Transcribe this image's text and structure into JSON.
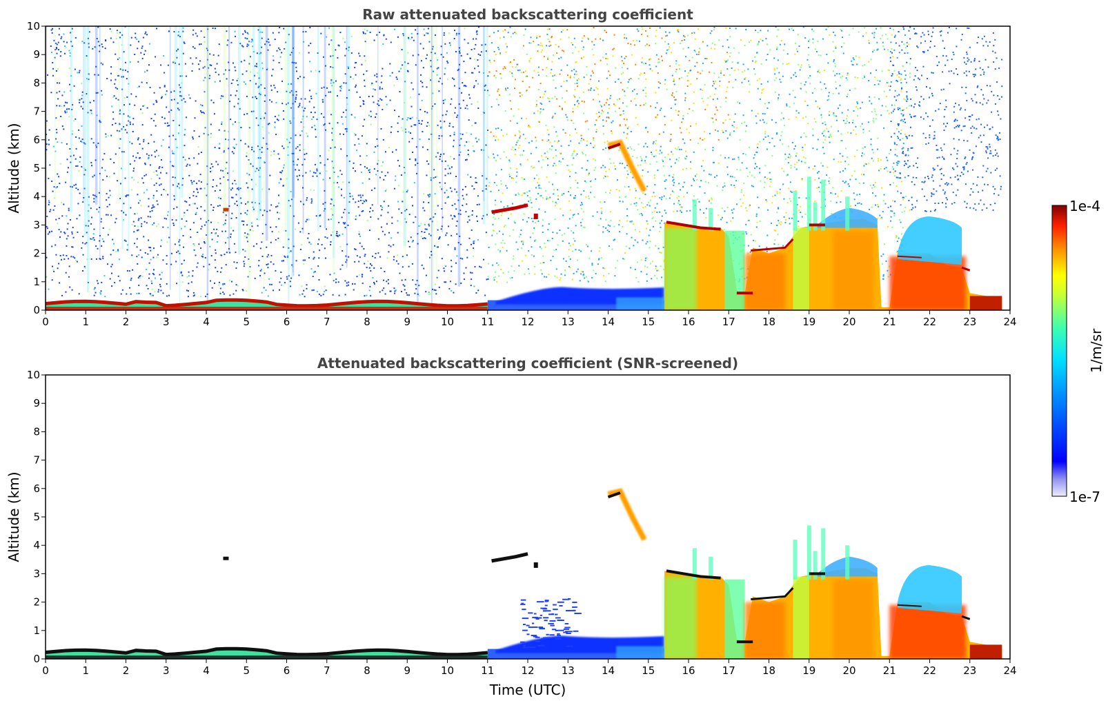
{
  "chart_data": [
    {
      "type": "heatmap",
      "title": "Raw attenuated backscattering coefficient",
      "xlabel": "",
      "ylabel": "Altitude (km)",
      "xlim": [
        0,
        24
      ],
      "ylim": [
        0,
        10
      ],
      "x_ticks": [
        0,
        1,
        2,
        3,
        4,
        5,
        6,
        7,
        8,
        9,
        10,
        11,
        12,
        13,
        14,
        15,
        16,
        17,
        18,
        19,
        20,
        21,
        22,
        23,
        24
      ],
      "y_ticks": [
        0,
        1,
        2,
        3,
        4,
        5,
        6,
        7,
        8,
        9,
        10
      ],
      "colormap": "jet",
      "log_scale": true,
      "features": [
        {
          "name": "near-surface layer",
          "x": [
            0,
            11
          ],
          "y": [
            0,
            0.4
          ],
          "level": "high"
        },
        {
          "name": "noise background",
          "x": [
            0,
            11
          ],
          "y": [
            0.4,
            10
          ],
          "level": "low"
        },
        {
          "name": "elevated layer",
          "x": [
            11,
            12.2
          ],
          "y": [
            3.3,
            3.7
          ],
          "level": "high"
        },
        {
          "name": "descending layer",
          "x": [
            14,
            15
          ],
          "y": [
            4.3,
            5.9
          ],
          "level": "high"
        },
        {
          "name": "boundary layer",
          "x": [
            11,
            15.4
          ],
          "y": [
            0,
            0.8
          ],
          "level": "low"
        },
        {
          "name": "cloud deck",
          "x": [
            15.4,
            23.8
          ],
          "y": [
            0,
            3.5
          ],
          "level": "high"
        },
        {
          "name": "scattered plumes",
          "x": [
            16,
            20
          ],
          "y": [
            3,
            4.8
          ],
          "level": "medium"
        }
      ]
    },
    {
      "type": "heatmap",
      "title": "Attenuated backscattering coefficient (SNR-screened)",
      "xlabel": "Time (UTC)",
      "ylabel": "Altitude (km)",
      "xlim": [
        0,
        24
      ],
      "ylim": [
        0,
        10
      ],
      "x_ticks": [
        0,
        1,
        2,
        3,
        4,
        5,
        6,
        7,
        8,
        9,
        10,
        11,
        12,
        13,
        14,
        15,
        16,
        17,
        18,
        19,
        20,
        21,
        22,
        23,
        24
      ],
      "y_ticks": [
        0,
        1,
        2,
        3,
        4,
        5,
        6,
        7,
        8,
        9,
        10
      ],
      "colormap": "jet",
      "log_scale": true,
      "features": [
        {
          "name": "near-surface layer",
          "x": [
            0,
            11
          ],
          "y": [
            0,
            0.4
          ],
          "level": "high"
        },
        {
          "name": "elevated layer",
          "x": [
            11,
            12.2
          ],
          "y": [
            3.3,
            3.7
          ],
          "level": "high"
        },
        {
          "name": "descending layer",
          "x": [
            14,
            15
          ],
          "y": [
            4.3,
            5.9
          ],
          "level": "high"
        },
        {
          "name": "boundary layer",
          "x": [
            11,
            15.4
          ],
          "y": [
            0,
            0.8
          ],
          "level": "low"
        },
        {
          "name": "cloud deck",
          "x": [
            15.4,
            23.8
          ],
          "y": [
            0,
            3.5
          ],
          "level": "high"
        }
      ]
    }
  ],
  "colorbar": {
    "label": "1/m/sr",
    "max_label": "1e-4",
    "min_label": "1e-7",
    "colors": [
      "#e8e8f8",
      "#b0b0f0",
      "#0000ff",
      "#0080ff",
      "#00d0ff",
      "#40ffc0",
      "#c0ff40",
      "#ffff00",
      "#ffa000",
      "#ff4000",
      "#d00000",
      "#800000"
    ]
  }
}
